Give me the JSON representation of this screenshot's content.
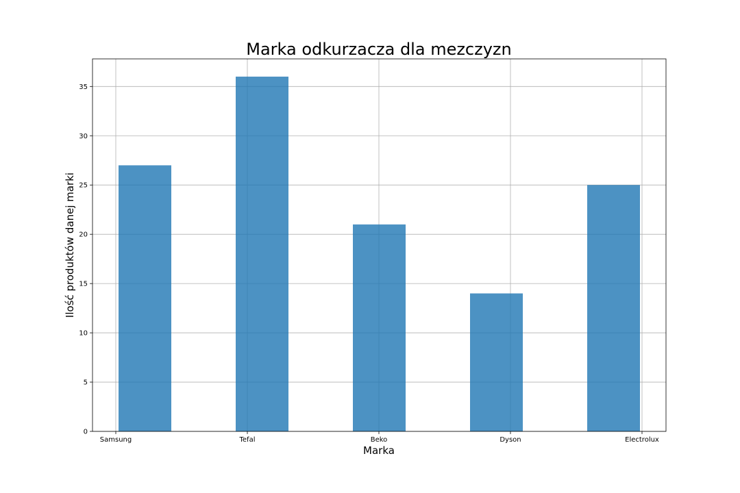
{
  "chart_data": {
    "type": "bar",
    "title": "Marka odkurzacza dla mezczyzn",
    "xlabel": "Marka",
    "ylabel": "Ilość produktów danej marki",
    "categories": [
      "Samsung",
      "Tefal",
      "Beko",
      "Dyson",
      "Electrolux"
    ],
    "values": [
      27,
      36,
      21,
      14,
      25
    ],
    "ylim": [
      0,
      37.8
    ],
    "yticks": [
      0,
      5,
      10,
      15,
      20,
      25,
      30,
      35
    ],
    "grid": true,
    "color": "#1f77b4"
  }
}
